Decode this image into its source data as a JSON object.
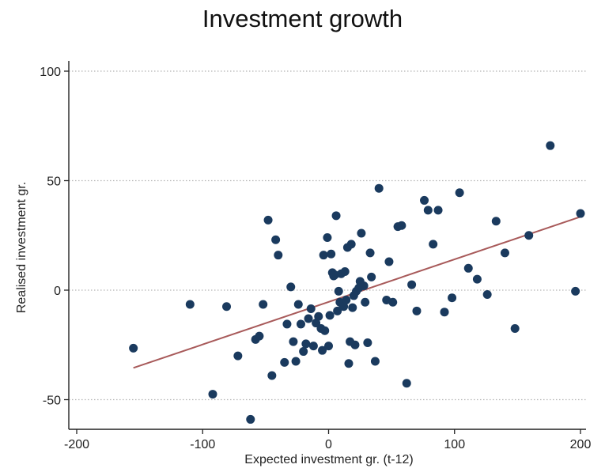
{
  "chart_data": {
    "type": "scatter",
    "title": "Investment growth",
    "xlabel": "Expected investment gr. (t-12)",
    "ylabel": "Realised investment gr.",
    "xlim": [
      -210,
      205
    ],
    "ylim": [
      -63,
      105
    ],
    "xticks": [
      -200,
      -100,
      0,
      100,
      200
    ],
    "yticks": [
      -50,
      0,
      50,
      100
    ],
    "grid": true,
    "colors": {
      "points": "#1a3a5e",
      "fit_line": "#a85a5a",
      "grid": "#b5b5b5",
      "axis": "#222222"
    },
    "fit_line": {
      "x": [
        -155,
        200
      ],
      "y": [
        -35.5,
        33.5
      ]
    },
    "points": [
      [
        -155,
        -26.5
      ],
      [
        -110,
        -6.5
      ],
      [
        -92,
        -47.5
      ],
      [
        -81,
        -7.5
      ],
      [
        -72,
        -30
      ],
      [
        -62,
        -59
      ],
      [
        -58,
        -22.5
      ],
      [
        -55,
        -21
      ],
      [
        -52,
        -6.5
      ],
      [
        -48,
        32
      ],
      [
        -45,
        -39
      ],
      [
        -42,
        23
      ],
      [
        -40,
        16
      ],
      [
        -35,
        -33
      ],
      [
        -33,
        -15.5
      ],
      [
        -30,
        1.5
      ],
      [
        -28,
        -23.5
      ],
      [
        -26,
        -32.5
      ],
      [
        -24,
        -6.5
      ],
      [
        -22,
        -15.5
      ],
      [
        -20,
        -28
      ],
      [
        -18,
        -24.5
      ],
      [
        -16,
        -13
      ],
      [
        -14,
        -8.5
      ],
      [
        -12,
        -25.5
      ],
      [
        -10,
        -15
      ],
      [
        -8,
        -12
      ],
      [
        -6,
        -17.5
      ],
      [
        -5,
        -27.5
      ],
      [
        -4,
        16
      ],
      [
        -3,
        -18.5
      ],
      [
        -1,
        24
      ],
      [
        0,
        -25.5
      ],
      [
        1,
        -11.5
      ],
      [
        2,
        16.5
      ],
      [
        3,
        8
      ],
      [
        4,
        6.5
      ],
      [
        5,
        7
      ],
      [
        6,
        34
      ],
      [
        7,
        -9.5
      ],
      [
        8,
        -0.5
      ],
      [
        9,
        -5.5
      ],
      [
        10,
        7.5
      ],
      [
        11,
        -6.5
      ],
      [
        12,
        -7.5
      ],
      [
        13,
        8.5
      ],
      [
        14,
        -4.5
      ],
      [
        15,
        19.5
      ],
      [
        16,
        -33.5
      ],
      [
        17,
        -23.5
      ],
      [
        18,
        21
      ],
      [
        19,
        -8
      ],
      [
        20,
        -2.5
      ],
      [
        21,
        -25
      ],
      [
        22,
        -0.5
      ],
      [
        24,
        1
      ],
      [
        25,
        4
      ],
      [
        26,
        26
      ],
      [
        28,
        2
      ],
      [
        29,
        -5.5
      ],
      [
        31,
        -24
      ],
      [
        33,
        17
      ],
      [
        34,
        6
      ],
      [
        37,
        -32.5
      ],
      [
        40,
        46.5
      ],
      [
        46,
        -4.5
      ],
      [
        48,
        13
      ],
      [
        51,
        -5.5
      ],
      [
        55,
        29
      ],
      [
        58,
        29.5
      ],
      [
        62,
        -42.5
      ],
      [
        66,
        2.5
      ],
      [
        70,
        -9.5
      ],
      [
        76,
        41
      ],
      [
        79,
        36.5
      ],
      [
        83,
        21
      ],
      [
        87,
        36.5
      ],
      [
        92,
        -10
      ],
      [
        98,
        -3.5
      ],
      [
        104,
        44.5
      ],
      [
        111,
        10
      ],
      [
        118,
        5
      ],
      [
        126,
        -2
      ],
      [
        133,
        31.5
      ],
      [
        140,
        17
      ],
      [
        148,
        -17.5
      ],
      [
        159,
        25
      ],
      [
        176,
        66
      ],
      [
        196,
        -0.5
      ],
      [
        200,
        35
      ]
    ]
  }
}
